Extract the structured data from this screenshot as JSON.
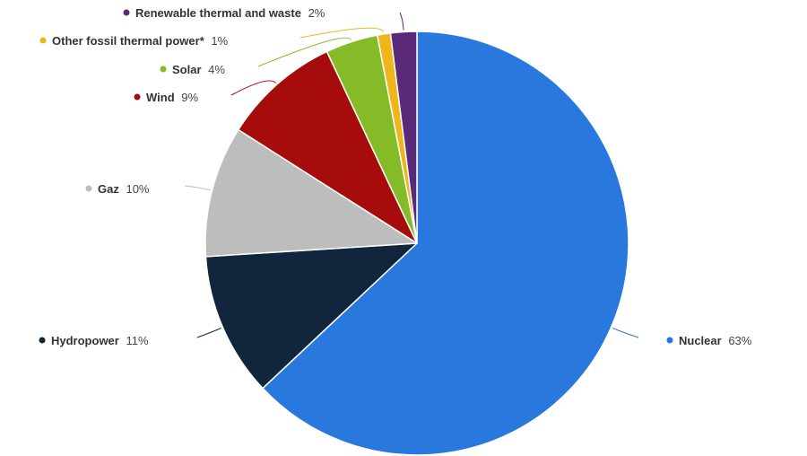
{
  "chart_data": {
    "type": "pie",
    "categories": [
      "Nuclear",
      "Hydropower",
      "Gaz",
      "Wind",
      "Solar",
      "Other fossil thermal power*",
      "Renewable thermal and waste"
    ],
    "values": [
      63,
      11,
      10,
      9,
      4,
      1,
      2
    ],
    "labels": [
      "63%",
      "11%",
      "10%",
      "9%",
      "4%",
      "1%",
      "2%"
    ],
    "colors": [
      "#2878DD",
      "#11263D",
      "#BDBDBD",
      "#A60C0C",
      "#86BB28",
      "#F0B51D",
      "#5A2A78"
    ],
    "start_angle_deg": 0,
    "direction": "clockwise",
    "legend": "none",
    "data_labels": "outside-with-connectors"
  }
}
